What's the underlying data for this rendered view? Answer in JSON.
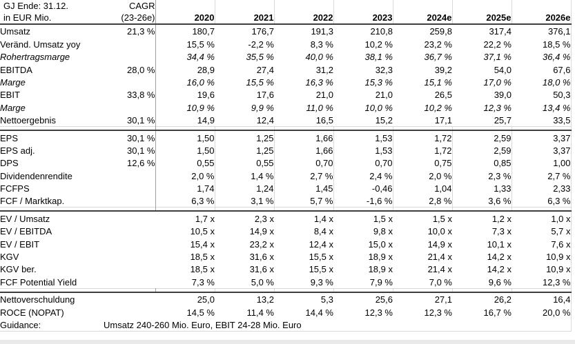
{
  "header": {
    "title_line1": "GJ Ende: 31.12.",
    "title_line2": "in EUR Mio.",
    "cagr_line1": "CAGR",
    "cagr_line2": "(23-26e)",
    "years": [
      "2020",
      "2021",
      "2022",
      "2023",
      "2024e",
      "2025e",
      "2026e"
    ]
  },
  "colors": {
    "dark_rule": "#3d3d3d",
    "light_rule": "#d9d9d9",
    "cagr_divider": "#9e9e9e",
    "bottom_band": "#eaeaea",
    "text": "#000000",
    "background": "#ffffff"
  },
  "sections": [
    {
      "vgrid": "divider",
      "rows": [
        {
          "label": "Umsatz",
          "style": "bold",
          "cagr": "21,3 %",
          "values": [
            "180,7",
            "176,7",
            "191,3",
            "210,8",
            "259,8",
            "317,4",
            "376,1"
          ]
        },
        {
          "label": "Veränd. Umsatz yoy",
          "style": "normal",
          "cagr": "",
          "values": [
            "15,5 %",
            "-2,2 %",
            "8,3 %",
            "10,2 %",
            "23,2 %",
            "22,2 %",
            "18,5 %"
          ]
        },
        {
          "label": "Rohertragsmarge",
          "style": "italic",
          "cagr": "",
          "values": [
            "34,4 %",
            "35,5 %",
            "40,0 %",
            "38,1 %",
            "36,7 %",
            "37,1 %",
            "36,4 %"
          ]
        },
        {
          "label": "EBITDA",
          "style": "bold",
          "cagr": "28,0 %",
          "values": [
            "28,9",
            "27,4",
            "31,2",
            "32,3",
            "39,2",
            "54,0",
            "67,6"
          ]
        },
        {
          "label": "Marge",
          "style": "italic",
          "cagr": "",
          "values": [
            "16,0 %",
            "15,5 %",
            "16,3 %",
            "15,3 %",
            "15,1 %",
            "17,0 %",
            "18,0 %"
          ]
        },
        {
          "label": "EBIT",
          "style": "bold",
          "cagr": "33,8 %",
          "values": [
            "19,6",
            "17,6",
            "21,0",
            "21,0",
            "26,5",
            "39,0",
            "50,3"
          ]
        },
        {
          "label": "Marge",
          "style": "italic",
          "cagr": "",
          "values": [
            "10,9 %",
            "9,9 %",
            "11,0 %",
            "10,0 %",
            "10,2 %",
            "12,3 %",
            "13,4 %"
          ]
        },
        {
          "label": "Nettoergebnis",
          "style": "bold",
          "cagr": "30,1 %",
          "values": [
            "14,9",
            "12,4",
            "16,5",
            "15,2",
            "17,1",
            "25,7",
            "33,5"
          ]
        }
      ]
    },
    {
      "vgrid": "all",
      "rows": [
        {
          "label": "EPS",
          "style": "bold",
          "cagr": "30,1 %",
          "values": [
            "1,50",
            "1,25",
            "1,66",
            "1,53",
            "1,72",
            "2,59",
            "3,37"
          ]
        },
        {
          "label": "EPS adj.",
          "style": "bold",
          "cagr": "30,1 %",
          "values": [
            "1,50",
            "1,25",
            "1,66",
            "1,53",
            "1,72",
            "2,59",
            "3,37"
          ]
        },
        {
          "label": "DPS",
          "style": "bold",
          "cagr": "12,6 %",
          "values": [
            "0,55",
            "0,55",
            "0,70",
            "0,70",
            "0,75",
            "0,85",
            "1,00"
          ]
        },
        {
          "label": "Dividendenrendite",
          "style": "normal",
          "cagr": "",
          "values": [
            "2,0 %",
            "1,4 %",
            "2,7 %",
            "2,4 %",
            "2,0 %",
            "2,3 %",
            "2,7 %"
          ]
        },
        {
          "label": "FCFPS",
          "style": "bold",
          "cagr": "",
          "values": [
            "1,74",
            "1,24",
            "1,45",
            "-0,46",
            "1,04",
            "1,33",
            "2,33"
          ]
        },
        {
          "label": "FCF / Marktkap.",
          "style": "bold",
          "cagr": "",
          "values": [
            "6,3 %",
            "3,1 %",
            "5,7 %",
            "-1,6 %",
            "2,8 %",
            "3,6 %",
            "6,3 %"
          ]
        }
      ]
    },
    {
      "vgrid": "right",
      "rows": [
        {
          "label": "EV / Umsatz",
          "style": "bold",
          "cagr": "",
          "values": [
            "1,7 x",
            "2,3 x",
            "1,4 x",
            "1,5 x",
            "1,5 x",
            "1,2 x",
            "1,0 x"
          ]
        },
        {
          "label": "EV / EBITDA",
          "style": "bold",
          "cagr": "",
          "values": [
            "10,5 x",
            "14,9 x",
            "8,4 x",
            "9,8 x",
            "10,0 x",
            "7,3 x",
            "5,7 x"
          ]
        },
        {
          "label": "EV / EBIT",
          "style": "bold",
          "cagr": "",
          "values": [
            "15,4 x",
            "23,2 x",
            "12,4 x",
            "15,0 x",
            "14,9 x",
            "10,1 x",
            "7,6 x"
          ]
        },
        {
          "label": "KGV",
          "style": "bold",
          "cagr": "",
          "values": [
            "18,5 x",
            "31,6 x",
            "15,5 x",
            "18,9 x",
            "21,4 x",
            "14,2 x",
            "10,9 x"
          ]
        },
        {
          "label": "KGV ber.",
          "style": "bold",
          "cagr": "",
          "values": [
            "18,5 x",
            "31,6 x",
            "15,5 x",
            "18,9 x",
            "21,4 x",
            "14,2 x",
            "10,9 x"
          ]
        },
        {
          "label": "FCF Potential Yield",
          "style": "bold",
          "cagr": "",
          "values": [
            "7,3 %",
            "5,0 %",
            "9,3 %",
            "7,9 %",
            "7,0 %",
            "9,6 %",
            "12,3 %"
          ]
        }
      ]
    },
    {
      "vgrid": "right",
      "rows": [
        {
          "label": "Nettoverschuldung",
          "style": "bold",
          "cagr": "",
          "values": [
            "25,0",
            "13,2",
            "5,3",
            "25,6",
            "27,1",
            "26,2",
            "16,4"
          ]
        },
        {
          "label": "ROCE (NOPAT)",
          "style": "bold",
          "cagr": "",
          "values": [
            "14,5 %",
            "11,4 %",
            "14,4 %",
            "12,3 %",
            "12,3 %",
            "16,7 %",
            "20,0 %"
          ]
        },
        {
          "label": "Guidance:",
          "style": "bold",
          "cagr": "",
          "guidance": "Umsatz 240-260 Mio. Euro, EBIT 24-28 Mio. Euro"
        }
      ]
    }
  ]
}
